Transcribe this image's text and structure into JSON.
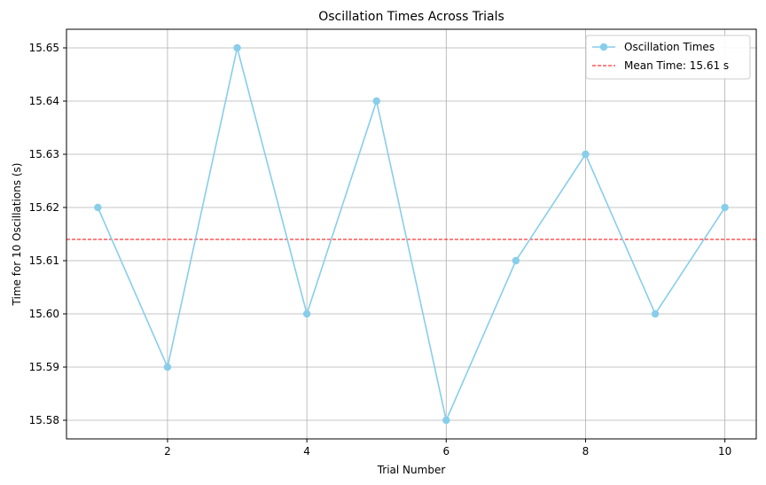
{
  "chart_data": {
    "type": "line",
    "title": "Oscillation Times Across Trials",
    "xlabel": "Trial Number",
    "ylabel": "Time for 10 Oscillations (s)",
    "xlim": [
      0.55,
      10.45
    ],
    "ylim": [
      15.5765,
      15.6535
    ],
    "xticks": [
      2,
      4,
      6,
      8,
      10
    ],
    "yticks": [
      15.58,
      15.59,
      15.6,
      15.61,
      15.62,
      15.63,
      15.64,
      15.65
    ],
    "xtick_labels": [
      "2",
      "4",
      "6",
      "8",
      "10"
    ],
    "ytick_labels": [
      "15.58",
      "15.59",
      "15.60",
      "15.61",
      "15.62",
      "15.63",
      "15.64",
      "15.65"
    ],
    "grid": true,
    "legend_position": "top-right",
    "series": [
      {
        "name": "Oscillation Times",
        "color": "#87ceeb",
        "marker": "circle",
        "x": [
          1,
          2,
          3,
          4,
          5,
          6,
          7,
          8,
          9,
          10
        ],
        "y": [
          15.62,
          15.59,
          15.65,
          15.6,
          15.64,
          15.58,
          15.61,
          15.63,
          15.6,
          15.62
        ]
      }
    ],
    "reference_lines": [
      {
        "name": "Mean Time: 15.61 s",
        "y": 15.614,
        "color": "#ff0000",
        "style": "dashed"
      }
    ]
  }
}
